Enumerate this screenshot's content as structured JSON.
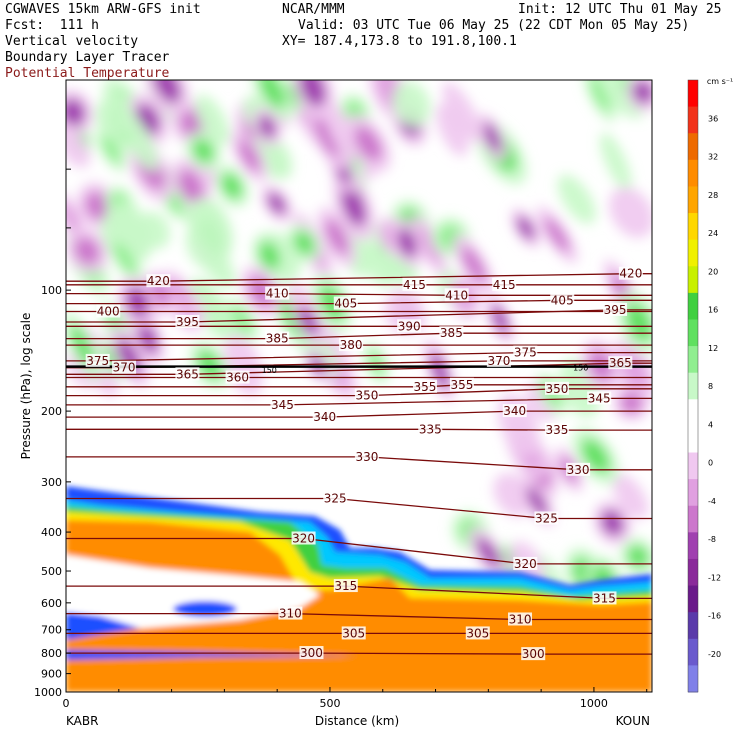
{
  "header": {
    "line1_left": "CGWAVES 15km ARW-GFS init",
    "line2_left": "Fcst:  111 h",
    "line1_center": "NCAR/MMM",
    "line1_right": "Init: 12 UTC Thu 01 May 25",
    "line2_right": "Valid: 03 UTC Tue 06 May 25 (22 CDT Mon 05 May 25)",
    "line3_right": "XY= 187.4,173.8 to 191.8,100.1",
    "field1": "Vertical velocity",
    "field2": "Boundary Layer Tracer",
    "field3": "Potential Temperature"
  },
  "chart_data": {
    "type": "heatmap",
    "title": "",
    "xlabel": "Distance (km)",
    "ylabel": "Pressure (hPa), log scale",
    "xlim": [
      0,
      1110
    ],
    "ylim": [
      1000,
      30
    ],
    "y_scale": "log",
    "x_ticks": [
      "0",
      "500",
      "1000"
    ],
    "x_tick_values": [
      0,
      500,
      1000
    ],
    "y_ticks": [
      "100",
      "200",
      "300",
      "400",
      "500",
      "600",
      "700",
      "800",
      "900",
      "1000"
    ],
    "y_tick_values": [
      100,
      200,
      300,
      400,
      500,
      600,
      700,
      800,
      900,
      1000
    ],
    "start_label": "KABR",
    "end_label": "KOUN",
    "colorbar": {
      "unit": "cm s⁻¹",
      "labels": [
        "36",
        "32",
        "28",
        "24",
        "20",
        "16",
        "12",
        "8",
        "4",
        "0",
        "-4",
        "-8",
        "-12",
        "-16",
        "-20"
      ],
      "values": [
        36,
        32,
        28,
        24,
        20,
        16,
        12,
        8,
        4,
        0,
        -4,
        -8,
        -12,
        -16,
        -20
      ],
      "colors": [
        "#ff0000",
        "#f2321a",
        "#ee6a00",
        "#ff8c00",
        "#ffa500",
        "#ffd700",
        "#f0f000",
        "#c8f000",
        "#40d040",
        "#60e060",
        "#90ee90",
        "#c8f8c8",
        "#ffffff",
        "#ffffff",
        "#f0c8f0",
        "#e0a0e0",
        "#cc77cc",
        "#a040b0",
        "#8a2a9a",
        "#6a1a8a",
        "#5a3aaa",
        "#6a5acd",
        "#8080e8"
      ]
    },
    "isentropes": {
      "color": "#7a0a0a",
      "labels": [
        {
          "theta": "420",
          "x": 175,
          "p": 95
        },
        {
          "theta": "420",
          "x": 1070,
          "p": 91
        },
        {
          "theta": "415",
          "x": 660,
          "p": 97
        },
        {
          "theta": "415",
          "x": 830,
          "p": 97
        },
        {
          "theta": "410",
          "x": 400,
          "p": 102
        },
        {
          "theta": "410",
          "x": 740,
          "p": 103
        },
        {
          "theta": "405",
          "x": 530,
          "p": 108
        },
        {
          "theta": "405",
          "x": 940,
          "p": 106
        },
        {
          "theta": "400",
          "x": 80,
          "p": 113
        },
        {
          "theta": "395",
          "x": 230,
          "p": 120
        },
        {
          "theta": "395",
          "x": 1040,
          "p": 112
        },
        {
          "theta": "390",
          "x": 650,
          "p": 123
        },
        {
          "theta": "385",
          "x": 400,
          "p": 132
        },
        {
          "theta": "385",
          "x": 730,
          "p": 128
        },
        {
          "theta": "380",
          "x": 540,
          "p": 137
        },
        {
          "theta": "375",
          "x": 60,
          "p": 150
        },
        {
          "theta": "375",
          "x": 870,
          "p": 143
        },
        {
          "theta": "370",
          "x": 110,
          "p": 156
        },
        {
          "theta": "370",
          "x": 820,
          "p": 150
        },
        {
          "theta": "365",
          "x": 230,
          "p": 162
        },
        {
          "theta": "365",
          "x": 1050,
          "p": 152
        },
        {
          "theta": "360",
          "x": 325,
          "p": 165
        },
        {
          "theta": "355",
          "x": 680,
          "p": 174
        },
        {
          "theta": "355",
          "x": 750,
          "p": 172
        },
        {
          "theta": "350",
          "x": 570,
          "p": 183
        },
        {
          "theta": "350",
          "x": 930,
          "p": 176
        },
        {
          "theta": "345",
          "x": 410,
          "p": 193
        },
        {
          "theta": "345",
          "x": 1010,
          "p": 186
        },
        {
          "theta": "340",
          "x": 490,
          "p": 207
        },
        {
          "theta": "340",
          "x": 850,
          "p": 200
        },
        {
          "theta": "335",
          "x": 690,
          "p": 222
        },
        {
          "theta": "335",
          "x": 930,
          "p": 223
        },
        {
          "theta": "330",
          "x": 570,
          "p": 260
        },
        {
          "theta": "330",
          "x": 970,
          "p": 280
        },
        {
          "theta": "325",
          "x": 510,
          "p": 330
        },
        {
          "theta": "325",
          "x": 910,
          "p": 370
        },
        {
          "theta": "320",
          "x": 450,
          "p": 415
        },
        {
          "theta": "320",
          "x": 870,
          "p": 480
        },
        {
          "theta": "315",
          "x": 530,
          "p": 545
        },
        {
          "theta": "315",
          "x": 1020,
          "p": 585
        },
        {
          "theta": "310",
          "x": 425,
          "p": 638
        },
        {
          "theta": "310",
          "x": 860,
          "p": 660
        },
        {
          "theta": "305",
          "x": 545,
          "p": 715
        },
        {
          "theta": "305",
          "x": 780,
          "p": 715
        },
        {
          "theta": "300",
          "x": 465,
          "p": 800
        },
        {
          "theta": "300",
          "x": 885,
          "p": 805
        }
      ],
      "tropopause_label": "150"
    }
  }
}
